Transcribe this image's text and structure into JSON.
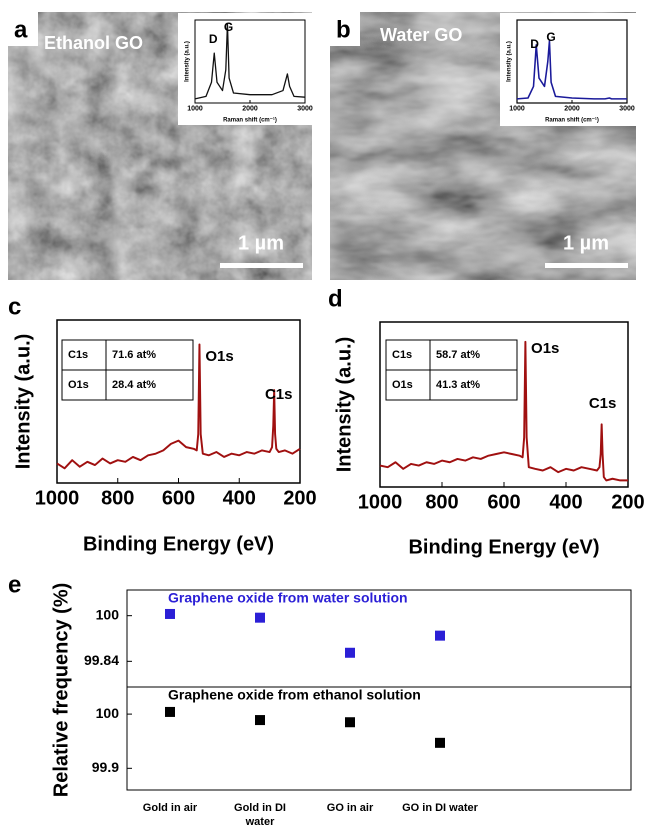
{
  "panels": [
    {
      "label": "a",
      "title": "Ethanol  GO",
      "scale_bar": "1 µm"
    },
    {
      "label": "b",
      "title": "Water GO",
      "scale_bar": "1 µm"
    }
  ],
  "chart_data": [
    {
      "type": "line",
      "xlabel": "Raman shift (cm⁻¹)",
      "ylabel": "Intensity (a.u.)",
      "x": [
        1000,
        1200,
        1300,
        1350,
        1400,
        1500,
        1560,
        1590,
        1620,
        1700,
        2000,
        2400,
        2600,
        2680,
        2720,
        2800,
        3000
      ],
      "series": [
        {
          "color": "#111111",
          "values": [
            5,
            8,
            25,
            60,
            25,
            15,
            40,
            95,
            30,
            12,
            10,
            10,
            15,
            35,
            20,
            8,
            7
          ]
        }
      ],
      "xlim": [
        1000,
        3000
      ],
      "xticks": [
        1000,
        2000,
        3000
      ],
      "ylim": [
        0,
        100
      ],
      "annotations": [
        "D",
        "G"
      ]
    },
    {
      "type": "line",
      "xlabel": "Raman shift (cm⁻¹)",
      "ylabel": "Intensity (a.u.)",
      "x": [
        1000,
        1200,
        1300,
        1350,
        1400,
        1500,
        1560,
        1590,
        1620,
        1700,
        2000,
        2400,
        2600,
        2680,
        2720,
        2800,
        3000
      ],
      "series": [
        {
          "color": "#1a1a9a",
          "values": [
            5,
            6,
            20,
            70,
            30,
            20,
            50,
            75,
            25,
            8,
            6,
            5,
            5,
            6,
            5,
            5,
            5
          ]
        }
      ],
      "xlim": [
        1000,
        3000
      ],
      "xticks": [
        1000,
        2000,
        3000
      ],
      "ylim": [
        0,
        100
      ],
      "annotations": [
        "D",
        "G"
      ]
    },
    {
      "type": "line",
      "label": "c",
      "xlabel": "Binding Energy (eV)",
      "ylabel": "Intensity (a.u.)",
      "x": [
        1000,
        975,
        950,
        925,
        900,
        875,
        850,
        825,
        800,
        775,
        750,
        725,
        700,
        675,
        650,
        625,
        600,
        575,
        550,
        540,
        535,
        531,
        527,
        520,
        500,
        475,
        450,
        425,
        400,
        375,
        350,
        325,
        300,
        292,
        288,
        285,
        282,
        278,
        270,
        250,
        225,
        200
      ],
      "series": [
        {
          "color": "#a01010",
          "values": [
            12,
            9,
            14,
            10,
            13,
            11,
            15,
            12,
            14,
            13,
            16,
            14,
            17,
            18,
            20,
            24,
            26,
            22,
            21,
            20,
            30,
            85,
            30,
            18,
            17,
            19,
            16,
            18,
            17,
            19,
            18,
            20,
            19,
            22,
            35,
            57,
            30,
            21,
            19,
            20,
            18,
            21
          ]
        }
      ],
      "xlim": [
        1000,
        200
      ],
      "xticks": [
        1000,
        800,
        600,
        400,
        200
      ],
      "ylim": [
        0,
        100
      ],
      "annotations": [
        "O1s",
        "C1s"
      ],
      "table": [
        [
          "C1s",
          "71.6 at%"
        ],
        [
          "O1s",
          "28.4 at%"
        ]
      ]
    },
    {
      "type": "line",
      "label": "d",
      "xlabel": "Binding Energy (eV)",
      "ylabel": "Intensity (a.u.)",
      "x": [
        1000,
        975,
        950,
        925,
        900,
        875,
        850,
        825,
        800,
        775,
        750,
        725,
        700,
        675,
        650,
        625,
        600,
        575,
        550,
        540,
        535,
        531,
        527,
        520,
        500,
        475,
        450,
        425,
        400,
        375,
        350,
        325,
        300,
        292,
        288,
        285,
        282,
        278,
        270,
        250,
        225,
        200
      ],
      "series": [
        {
          "color": "#a01010",
          "values": [
            13,
            12,
            15,
            11,
            14,
            13,
            15,
            14,
            16,
            15,
            17,
            16,
            18,
            17,
            19,
            20,
            21,
            20,
            19,
            18,
            30,
            88,
            30,
            12,
            11,
            10,
            12,
            9,
            11,
            10,
            12,
            11,
            10,
            12,
            20,
            38,
            20,
            6,
            4,
            5,
            4,
            4
          ]
        }
      ],
      "xlim": [
        1000,
        200
      ],
      "xticks": [
        1000,
        800,
        600,
        400,
        200
      ],
      "ylim": [
        0,
        100
      ],
      "annotations": [
        "O1s",
        "C1s"
      ],
      "table": [
        [
          "C1s",
          "58.7 at%"
        ],
        [
          "O1s",
          "41.3 at%"
        ]
      ]
    },
    {
      "type": "scatter",
      "label": "e",
      "ylabel": "Relative frequency (%)",
      "categories": [
        "Gold in air",
        "Gold in DI water",
        "GO in air",
        "GO in DI water"
      ],
      "series": [
        {
          "name": "Graphene oxide from water solution",
          "color": "#2b1fd6",
          "values": [
            100.006,
            99.993,
            99.87,
            99.93
          ],
          "ylim": [
            99.75,
            100.09
          ],
          "yticks": [
            100,
            99.84
          ]
        },
        {
          "name": "Graphene oxide from ethanol solution",
          "color": "#000000",
          "values": [
            100.004,
            99.989,
            99.985,
            99.947
          ],
          "ylim": [
            99.86,
            100.05
          ],
          "yticks": [
            100,
            99.9
          ]
        }
      ]
    }
  ]
}
